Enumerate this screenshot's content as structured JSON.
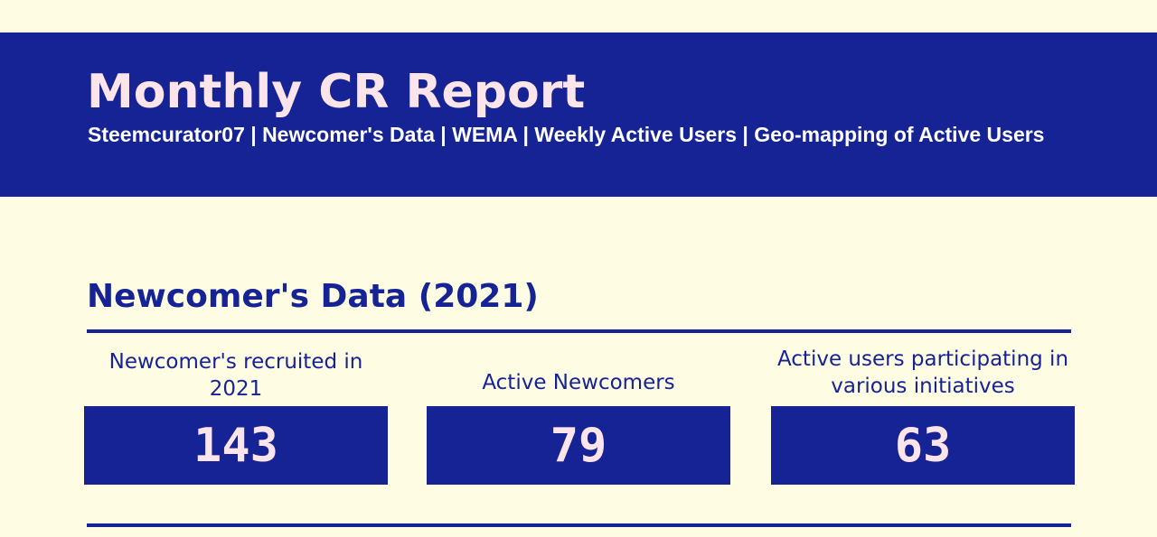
{
  "header": {
    "title": "Monthly CR Report",
    "subtitle": "Steemcurator07 | Newcomer's Data | WEMA | Weekly Active Users | Geo-mapping of Active Users"
  },
  "section": {
    "heading": "Newcomer's Data (2021)"
  },
  "stats": [
    {
      "label": "Newcomer's recruited in 2021",
      "value": "143"
    },
    {
      "label": "Active Newcomers",
      "value": "79"
    },
    {
      "label": "Active users participating in various initiatives",
      "value": "63"
    }
  ],
  "colors": {
    "background": "#fefce3",
    "primary": "#162394",
    "accent_text": "#fbe4ea"
  }
}
